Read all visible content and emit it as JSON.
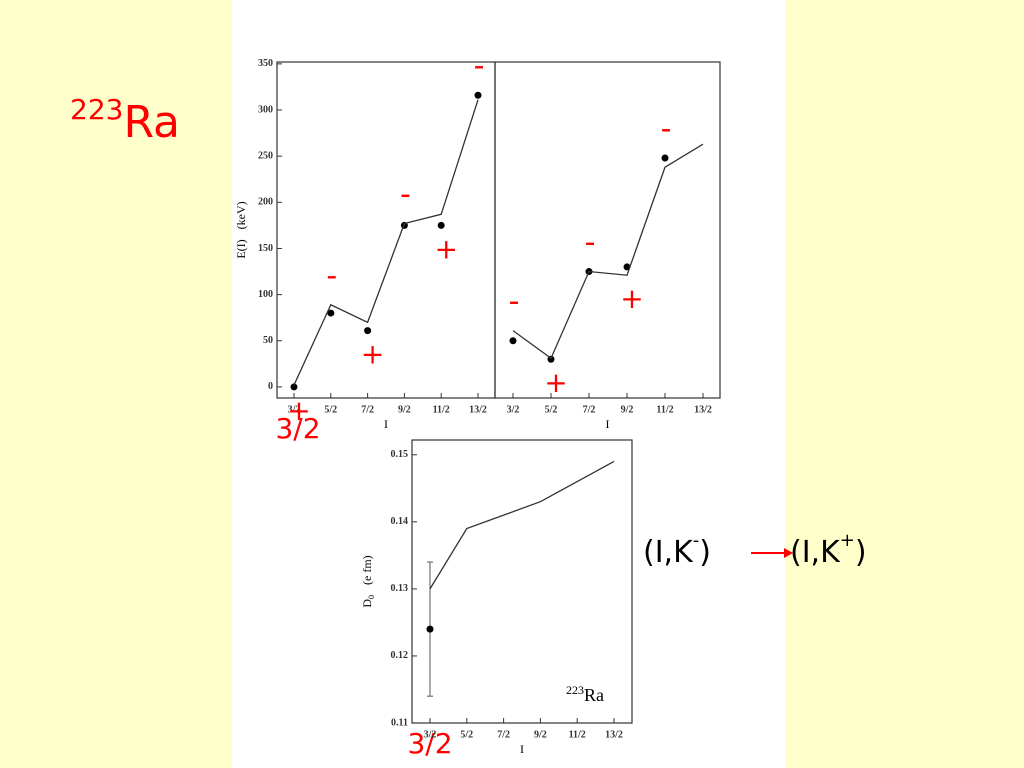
{
  "slide": {
    "title": {
      "mass": "223",
      "symbol": "Ra"
    },
    "spin_labels": [
      "3/2",
      "3/2"
    ],
    "transition": {
      "from_text": "(I,K",
      "from_sign": "-",
      "to_text": "(I,K",
      "to_sign": "+",
      "close": ")"
    }
  },
  "chart_data": [
    {
      "type": "line",
      "y_label": "E(I)",
      "y_unit": "(keV)",
      "x_label": "I",
      "categories": [
        "3/2",
        "5/2",
        "7/2",
        "9/2",
        "11/2",
        "13/2"
      ],
      "ylim": [
        -12,
        352
      ],
      "yticks": [
        0,
        50,
        100,
        150,
        200,
        250,
        300,
        350
      ],
      "series": [
        {
          "mode": "markers",
          "color": "#000000",
          "values": [
            0,
            80,
            61,
            175,
            175,
            316
          ]
        },
        {
          "mode": "lines",
          "color": "#333333",
          "values": [
            2,
            89,
            70,
            177,
            187,
            311
          ]
        }
      ],
      "point_labels": [
        "+",
        "-",
        "+",
        "-",
        "+",
        "-"
      ],
      "point_label_color": "#ff0000"
    },
    {
      "type": "line",
      "x_label": "I",
      "categories": [
        "3/2",
        "5/2",
        "7/2",
        "9/2",
        "11/2",
        "13/2"
      ],
      "ylim": [
        -12,
        352
      ],
      "series": [
        {
          "mode": "markers",
          "color": "#000000",
          "values": [
            50,
            30,
            125,
            130,
            248,
            null
          ]
        },
        {
          "mode": "lines",
          "color": "#333333",
          "values": [
            61,
            31,
            125,
            121,
            238,
            263
          ]
        }
      ],
      "point_labels": [
        "-",
        "+",
        "-",
        "+",
        "-",
        null
      ],
      "point_label_color": "#ff0000"
    },
    {
      "type": "line",
      "y_label": "D",
      "y_label_sub": "0",
      "y_unit": "(e fm)",
      "x_label": "I",
      "annotation": {
        "mass": "223",
        "symbol": "Ra"
      },
      "categories": [
        "3/2",
        "5/2",
        "7/2",
        "9/2",
        "11/2",
        "13/2"
      ],
      "ylim": [
        0.11,
        0.1522
      ],
      "yticks": [
        0.11,
        0.12,
        0.13,
        0.14,
        0.15
      ],
      "series": [
        {
          "mode": "markers",
          "color": "#000000",
          "values": [
            0.124,
            null,
            null,
            null,
            null,
            null
          ],
          "errors": [
            0.01,
            null,
            null,
            null,
            null,
            null
          ]
        },
        {
          "mode": "lines",
          "color": "#333333",
          "values": [
            0.13,
            0.139,
            0.141,
            0.143,
            0.146,
            0.149
          ]
        }
      ]
    }
  ]
}
